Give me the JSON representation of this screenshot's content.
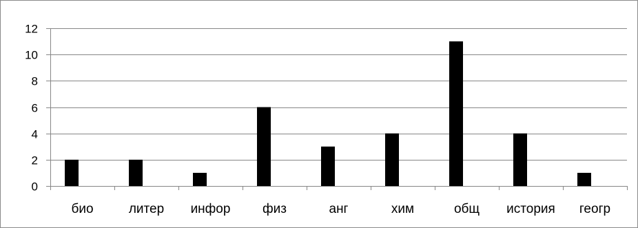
{
  "chart_data": {
    "type": "bar",
    "title": "",
    "xlabel": "",
    "ylabel": "",
    "categories": [
      "био",
      "литер",
      "инфор",
      "физ",
      "анг",
      "хим",
      "общ",
      "история",
      "геогр"
    ],
    "series": [
      {
        "values": [
          2,
          2,
          1,
          6,
          3,
          4,
          11,
          4,
          1
        ]
      }
    ],
    "ylim": [
      0,
      12
    ],
    "yticks": [
      0,
      2,
      4,
      6,
      8,
      10,
      12
    ],
    "ytick_labels": [
      "0",
      "2",
      "4",
      "6",
      "8",
      "10",
      "12"
    ],
    "grid": true,
    "legend": "none",
    "colors": {
      "bar": "#000000",
      "grid": "#868686",
      "axis": "#868686",
      "border": "#8a8a8a"
    }
  }
}
